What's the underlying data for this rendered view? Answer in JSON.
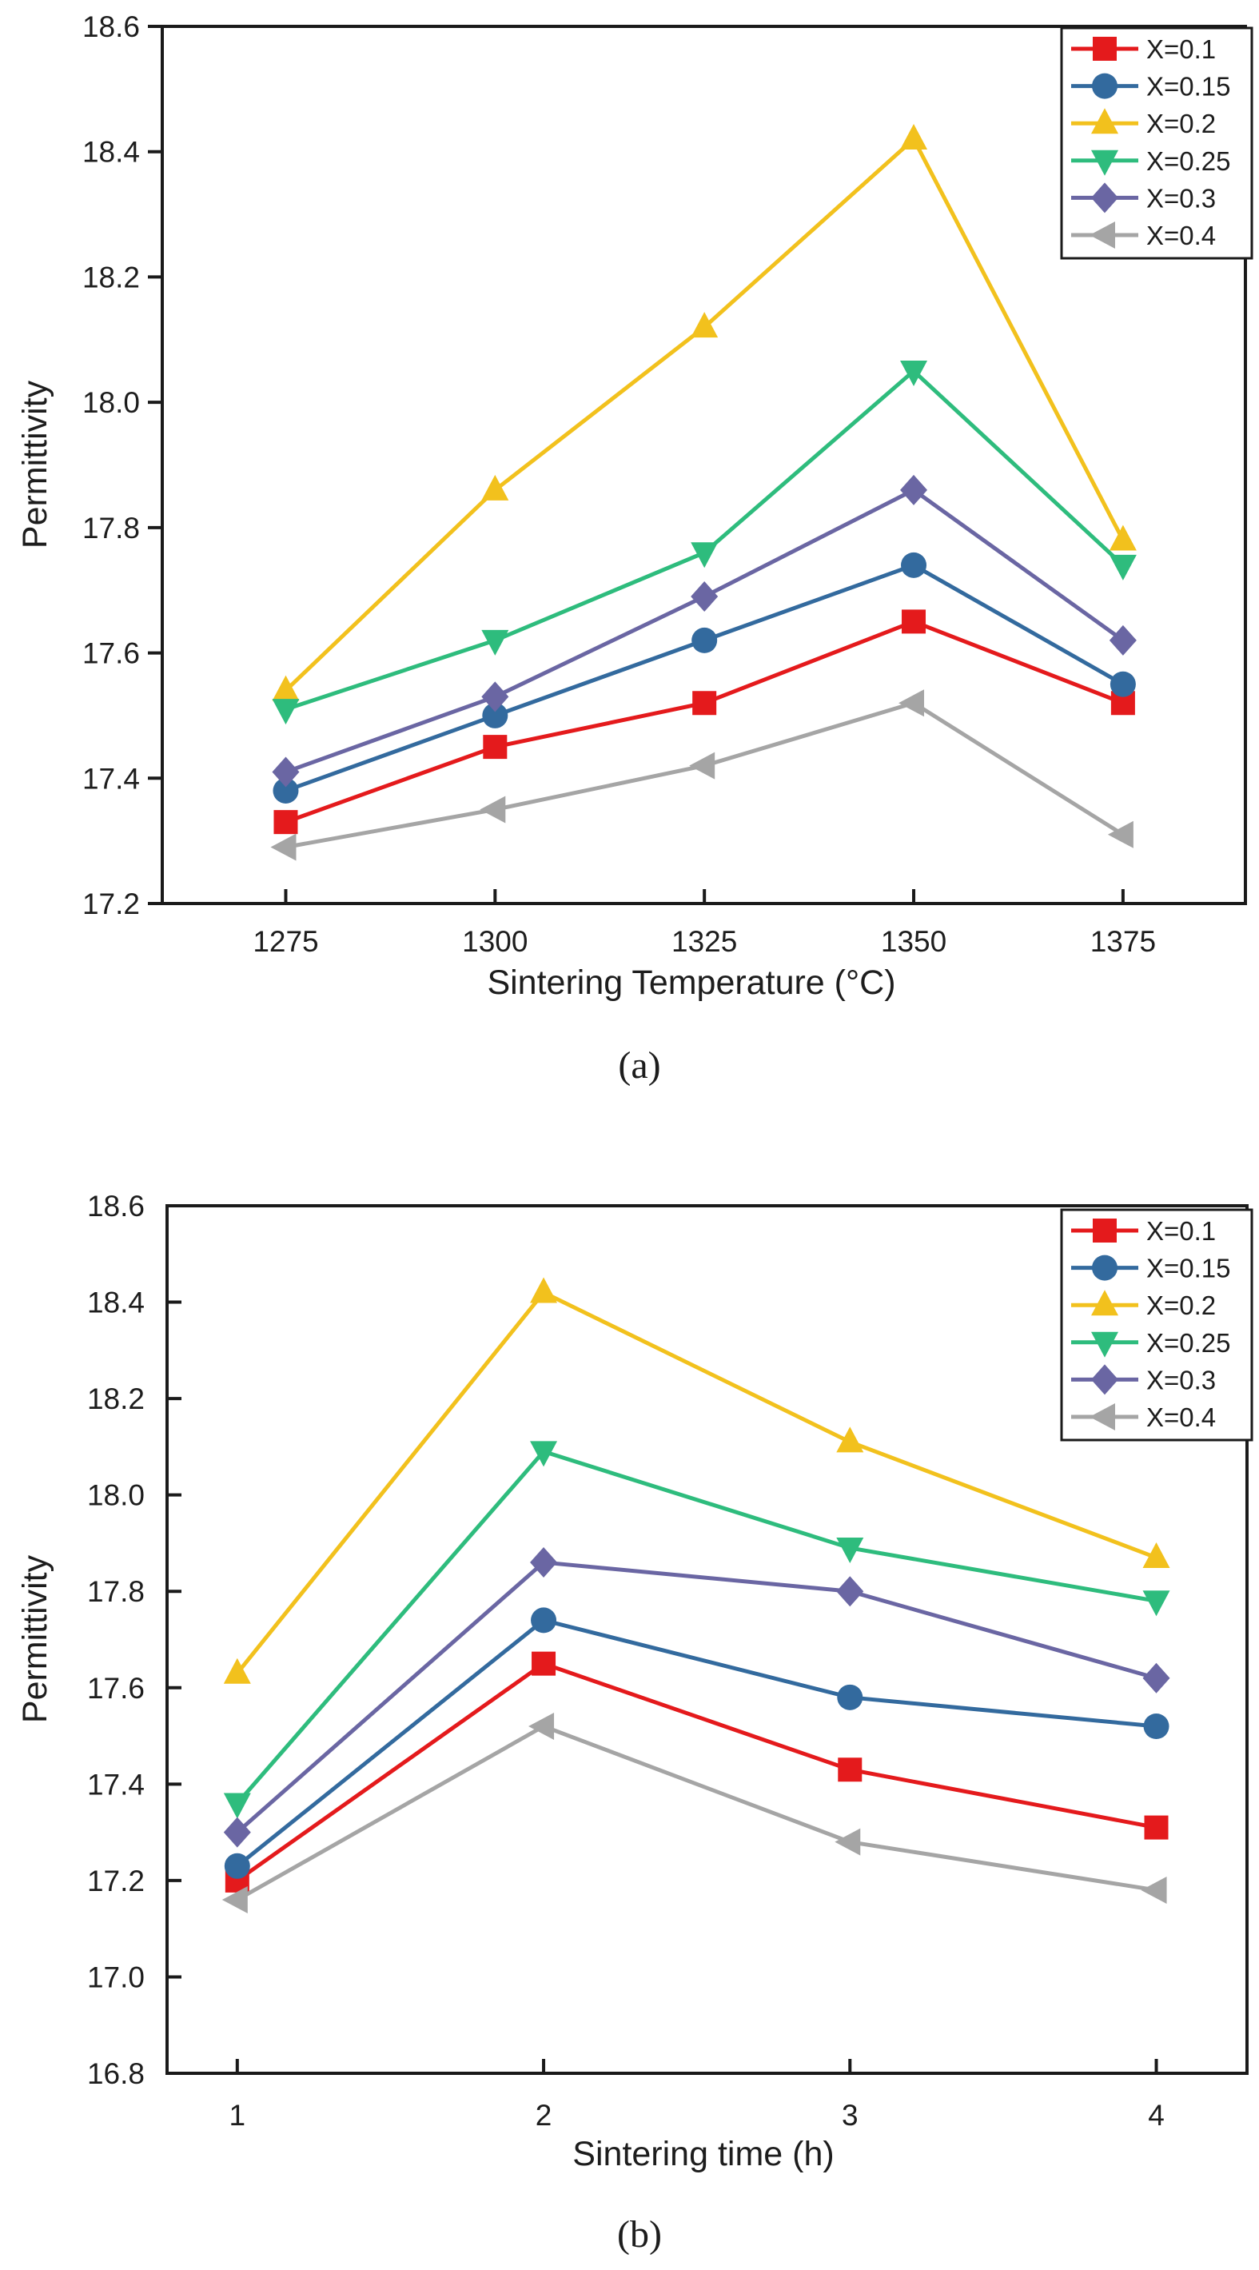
{
  "figure": {
    "background": "#ffffff",
    "axis_color": "#1a1a1a",
    "text_color": "#1d1d1d"
  },
  "legend": {
    "position": "top-right",
    "border_color": "#1a1a1a",
    "items": [
      {
        "label": "X=0.1",
        "color": "#e41a1c",
        "marker": "square"
      },
      {
        "label": "X=0.15",
        "color": "#336a9e",
        "marker": "circle"
      },
      {
        "label": "X=0.2",
        "color": "#f2c11d",
        "marker": "triangle-up"
      },
      {
        "label": "X=0.25",
        "color": "#2ebc7d",
        "marker": "triangle-down"
      },
      {
        "label": "X=0.3",
        "color": "#6a66a3",
        "marker": "diamond"
      },
      {
        "label": "X=0.4",
        "color": "#a5a5a5",
        "marker": "triangle-left"
      }
    ]
  },
  "chart_data": [
    {
      "id": "a",
      "type": "line",
      "caption": "(a)",
      "title": "",
      "xlabel": "Sintering Temperature (°C)",
      "ylabel": "Permittivity",
      "categories": [
        "1275",
        "1300",
        "1325",
        "1350",
        "1375"
      ],
      "y_ticks": [
        17.2,
        17.4,
        17.6,
        17.8,
        18.0,
        18.2,
        18.4,
        18.6
      ],
      "ylim": [
        17.2,
        18.6
      ],
      "grid": false,
      "legend_position": "top-right",
      "x_frac_first": 0.114,
      "x_frac_last": 0.887,
      "series": [
        {
          "name": "X=0.1",
          "color": "#e41a1c",
          "marker": "square",
          "values": [
            17.33,
            17.45,
            17.52,
            17.65,
            17.52
          ]
        },
        {
          "name": "X=0.15",
          "color": "#336a9e",
          "marker": "circle",
          "values": [
            17.38,
            17.5,
            17.62,
            17.74,
            17.55
          ]
        },
        {
          "name": "X=0.2",
          "color": "#f2c11d",
          "marker": "triangle-up",
          "values": [
            17.54,
            17.86,
            18.12,
            18.42,
            17.78
          ]
        },
        {
          "name": "X=0.25",
          "color": "#2ebc7d",
          "marker": "triangle-down",
          "values": [
            17.51,
            17.62,
            17.76,
            18.05,
            17.74
          ]
        },
        {
          "name": "X=0.3",
          "color": "#6a66a3",
          "marker": "diamond",
          "values": [
            17.41,
            17.53,
            17.69,
            17.86,
            17.62
          ]
        },
        {
          "name": "X=0.4",
          "color": "#a5a5a5",
          "marker": "triangle-left",
          "values": [
            17.29,
            17.35,
            17.42,
            17.52,
            17.31
          ]
        }
      ]
    },
    {
      "id": "b",
      "type": "line",
      "caption": "(b)",
      "title": "",
      "xlabel": "Sintering time (h)",
      "ylabel": "Permittivity",
      "categories": [
        "1",
        "2",
        "3",
        "4"
      ],
      "y_ticks": [
        16.8,
        17.0,
        17.2,
        17.4,
        17.6,
        17.8,
        18.0,
        18.2,
        18.4,
        18.6
      ],
      "ylim": [
        16.8,
        18.6
      ],
      "grid": false,
      "legend_position": "top-right",
      "x_frac_first": 0.065,
      "x_frac_last": 0.916,
      "series": [
        {
          "name": "X=0.1",
          "color": "#e41a1c",
          "marker": "square",
          "values": [
            17.2,
            17.65,
            17.43,
            17.31
          ]
        },
        {
          "name": "X=0.15",
          "color": "#336a9e",
          "marker": "circle",
          "values": [
            17.23,
            17.74,
            17.58,
            17.52
          ]
        },
        {
          "name": "X=0.2",
          "color": "#f2c11d",
          "marker": "triangle-up",
          "values": [
            17.63,
            18.42,
            18.11,
            17.87
          ]
        },
        {
          "name": "X=0.25",
          "color": "#2ebc7d",
          "marker": "triangle-down",
          "values": [
            17.36,
            18.09,
            17.89,
            17.78
          ]
        },
        {
          "name": "X=0.3",
          "color": "#6a66a3",
          "marker": "diamond",
          "values": [
            17.3,
            17.86,
            17.8,
            17.62
          ]
        },
        {
          "name": "X=0.4",
          "color": "#a5a5a5",
          "marker": "triangle-left",
          "values": [
            17.16,
            17.52,
            17.28,
            17.18
          ]
        }
      ]
    }
  ]
}
